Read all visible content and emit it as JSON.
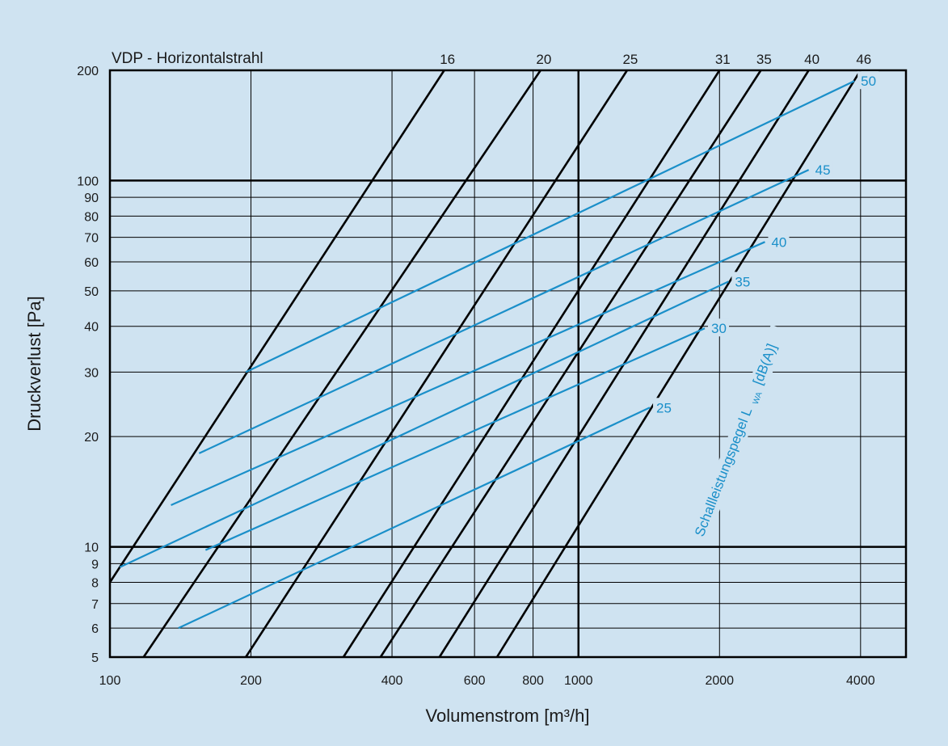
{
  "chart_data": {
    "type": "line",
    "title": "VDP - Horizontalstrahl",
    "xlabel": "Volumenstrom [m³/h]",
    "ylabel": "Druckverlust [Pa]",
    "xscale": "log",
    "yscale": "log",
    "xlim": [
      100,
      5000
    ],
    "ylim": [
      5,
      200
    ],
    "x_ticks": [
      {
        "value": 100,
        "label": "100"
      },
      {
        "value": 200,
        "label": "200"
      },
      {
        "value": 400,
        "label": "400"
      },
      {
        "value": 600,
        "label": "600"
      },
      {
        "value": 800,
        "label": "800"
      },
      {
        "value": 1000,
        "label": "1000"
      },
      {
        "value": 2000,
        "label": "2000"
      },
      {
        "value": 4000,
        "label": "4000"
      }
    ],
    "y_ticks": [
      {
        "value": 5,
        "label": "5"
      },
      {
        "value": 6,
        "label": "6"
      },
      {
        "value": 7,
        "label": "7"
      },
      {
        "value": 8,
        "label": "8"
      },
      {
        "value": 9,
        "label": "9"
      },
      {
        "value": 10,
        "label": "10"
      },
      {
        "value": 20,
        "label": "20"
      },
      {
        "value": 30,
        "label": "30"
      },
      {
        "value": 40,
        "label": "40"
      },
      {
        "value": 50,
        "label": "50"
      },
      {
        "value": 60,
        "label": "60"
      },
      {
        "value": 70,
        "label": "70"
      },
      {
        "value": 80,
        "label": "80"
      },
      {
        "value": 90,
        "label": "90"
      },
      {
        "value": 100,
        "label": "100"
      },
      {
        "value": 200,
        "label": "200"
      }
    ],
    "grid": true,
    "series": [
      {
        "name": "16",
        "color": "#000000",
        "x": [
          100,
          517
        ],
        "y": [
          8,
          200
        ]
      },
      {
        "name": "20",
        "color": "#000000",
        "x": [
          118,
          830
        ],
        "y": [
          5,
          200
        ]
      },
      {
        "name": "25",
        "color": "#000000",
        "x": [
          195,
          1270
        ],
        "y": [
          5,
          200
        ]
      },
      {
        "name": "31",
        "color": "#000000",
        "x": [
          315,
          2000
        ],
        "y": [
          5,
          200
        ]
      },
      {
        "name": "35",
        "color": "#000000",
        "x": [
          378,
          2450
        ],
        "y": [
          5,
          200
        ]
      },
      {
        "name": "40",
        "color": "#000000",
        "x": [
          505,
          3100
        ],
        "y": [
          5,
          200
        ]
      },
      {
        "name": "46",
        "color": "#000000",
        "x": [
          670,
          4000
        ],
        "y": [
          5,
          200
        ]
      }
    ],
    "sound_level_lines": {
      "title": "Schallleistungspegel L",
      "subscript": "WA",
      "unit": "[dB(A)]",
      "color": "#1a8fc9",
      "lines": [
        {
          "label": "25",
          "x": [
            140,
            1420
          ],
          "y": [
            6,
            24
          ]
        },
        {
          "label": "30",
          "x": [
            160,
            1860
          ],
          "y": [
            9.8,
            39.5
          ]
        },
        {
          "label": "35",
          "x": [
            105,
            2090
          ],
          "y": [
            8.8,
            53
          ]
        },
        {
          "label": "40",
          "x": [
            135,
            2500
          ],
          "y": [
            13,
            68
          ]
        },
        {
          "label": "45",
          "x": [
            155,
            3100
          ],
          "y": [
            18,
            107
          ]
        },
        {
          "label": "50",
          "x": [
            195,
            3880
          ],
          "y": [
            30,
            187
          ]
        }
      ]
    }
  }
}
